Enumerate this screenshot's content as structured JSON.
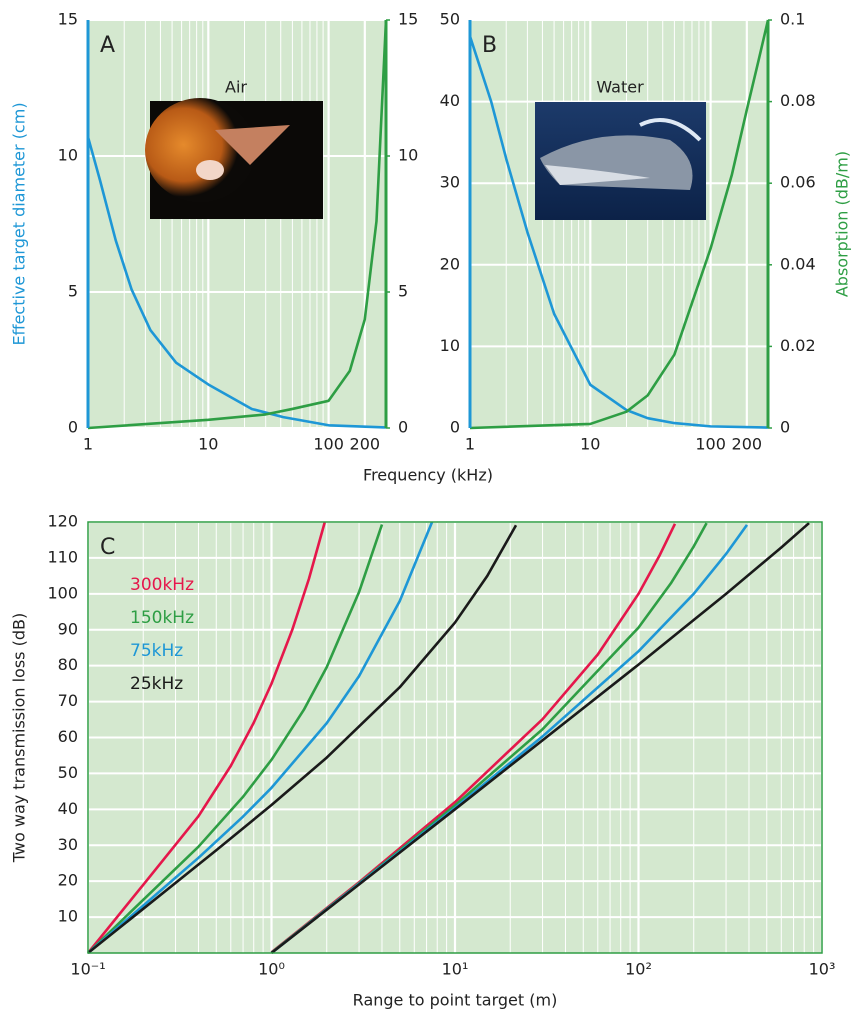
{
  "chart_data": [
    {
      "type": "line",
      "label": "A",
      "annotation": "Air",
      "xlabel": "Frequency (kHz)",
      "ylabel": "Effective target diameter (cm)",
      "log_x": true,
      "grid": true,
      "xlim": [
        1,
        300
      ],
      "xticks": [
        1,
        10,
        100,
        200
      ],
      "x_minor_ticks": [
        2,
        3,
        4,
        5,
        6,
        7,
        8,
        9,
        20,
        30,
        40,
        50,
        60,
        70,
        80,
        90
      ],
      "ylim": [
        0,
        15
      ],
      "yticks": [
        0,
        5,
        10,
        15
      ],
      "y2lim": [
        0,
        15
      ],
      "y2ticks": [
        0,
        5,
        10,
        15
      ],
      "series": [
        {
          "color": "#1e97d6",
          "x": [
            1,
            1.26,
            1.7,
            2.3,
            3.3,
            5.4,
            10,
            23,
            42,
            100,
            300
          ],
          "values": [
            10.7,
            9.1,
            6.9,
            5.1,
            3.6,
            2.4,
            1.6,
            0.7,
            0.4,
            0.1,
            0.02
          ]
        },
        {
          "color": "#2e9e44",
          "axis": "y2",
          "x": [
            1,
            10,
            30,
            50,
            100,
            150,
            200,
            250,
            300
          ],
          "values": [
            0,
            0.3,
            0.5,
            0.7,
            1.0,
            2.1,
            4.0,
            7.6,
            15
          ]
        }
      ]
    },
    {
      "type": "line",
      "label": "B",
      "annotation": "Water",
      "y2label": "Absorption (dB/m)",
      "log_x": true,
      "grid": true,
      "xlim": [
        1,
        300
      ],
      "xticks": [
        1,
        10,
        100,
        200
      ],
      "x_minor_ticks": [
        2,
        3,
        4,
        5,
        6,
        7,
        8,
        9,
        20,
        30,
        40,
        50,
        60,
        70,
        80,
        90
      ],
      "ylim": [
        0,
        50
      ],
      "yticks": [
        0,
        10,
        20,
        30,
        40,
        50
      ],
      "y2lim": [
        0,
        0.1
      ],
      "y2ticks": [
        0,
        0.02,
        0.04,
        0.06,
        0.08,
        0.1
      ],
      "series": [
        {
          "color": "#1e97d6",
          "x": [
            1,
            1.5,
            2,
            3,
            5,
            10,
            20,
            30,
            50,
            100,
            300
          ],
          "values": [
            48,
            40,
            33,
            24,
            14,
            5.3,
            2.2,
            1.2,
            0.6,
            0.2,
            0.05
          ]
        },
        {
          "color": "#2e9e44",
          "axis": "y2",
          "x": [
            1,
            10,
            20,
            30,
            50,
            100,
            150,
            200,
            250,
            300
          ],
          "values": [
            0,
            0.001,
            0.004,
            0.008,
            0.018,
            0.044,
            0.062,
            0.078,
            0.09,
            0.1
          ]
        }
      ]
    },
    {
      "type": "line",
      "label": "C",
      "xlabel": "Range to point target (m)",
      "ylabel": "Two way transmission loss (dB)",
      "log_x": true,
      "grid": true,
      "legend": "upper left",
      "xlim": [
        0.1,
        1000
      ],
      "xticks": [
        {
          "value": 0.1,
          "label": "10⁻¹"
        },
        {
          "value": 1,
          "label": "10⁰"
        },
        {
          "value": 10,
          "label": "10¹"
        },
        {
          "value": 100,
          "label": "10²"
        },
        {
          "value": 1000,
          "label": "10³"
        }
      ],
      "x_minor_ticks": [
        0.2,
        0.3,
        0.4,
        0.5,
        0.6,
        0.7,
        0.8,
        0.9,
        2,
        3,
        4,
        5,
        6,
        7,
        8,
        9,
        20,
        30,
        40,
        50,
        60,
        70,
        80,
        90,
        200,
        300,
        400,
        500,
        600,
        700,
        800,
        900
      ],
      "ylim": [
        0,
        120
      ],
      "yticks": [
        10,
        20,
        30,
        40,
        50,
        60,
        70,
        80,
        90,
        100,
        110,
        120
      ],
      "series": [
        {
          "name": "300kHz",
          "color": "#e5174b",
          "curves": [
            {
              "x": [
                0.1,
                0.2,
                0.4,
                0.6,
                0.8,
                1.0,
                1.3,
                1.6,
                1.95
              ],
              "values": [
                0,
                19.0,
                38.1,
                52.1,
                64.1,
                75,
                90.1,
                104.2,
                119.9
              ]
            },
            {
              "x": [
                1,
                3,
                10,
                30,
                60,
                100,
                130,
                158
              ],
              "values": [
                0.2,
                19.7,
                42,
                65.1,
                83.1,
                100,
                110.6,
                119.5
              ]
            }
          ]
        },
        {
          "name": "150kHz",
          "color": "#2e9e44",
          "curves": [
            {
              "x": [
                0.1,
                0.2,
                0.4,
                0.7,
                1,
                1.5,
                2,
                3,
                4
              ],
              "values": [
                0,
                14.8,
                29.6,
                43.5,
                53.8,
                67.7,
                79.6,
                100.5,
                119.3
              ]
            },
            {
              "x": [
                1,
                3,
                10,
                30,
                100,
                150,
                200,
                235
              ],
              "values": [
                0.1,
                19.4,
                41.1,
                62.3,
                90.6,
                102.9,
                113.2,
                119.7
              ]
            }
          ]
        },
        {
          "name": "75kHz",
          "color": "#1e97d6",
          "curves": [
            {
              "x": [
                0.1,
                0.2,
                0.4,
                0.7,
                1,
                2,
                3,
                5,
                7.5
              ],
              "values": [
                0,
                13.2,
                26.5,
                38.0,
                46,
                64.0,
                77.1,
                98.0,
                120
              ]
            },
            {
              "x": [
                1,
                10,
                30,
                100,
                200,
                300,
                390
              ],
              "values": [
                0,
                40.4,
                60.3,
                84,
                100,
                111.1,
                119.2
              ]
            }
          ]
        },
        {
          "name": "25kHz",
          "color": "#1a1a1a",
          "curves": [
            {
              "x": [
                0.1,
                0.2,
                0.5,
                1,
                2,
                5,
                10,
                15,
                21.5
              ],
              "values": [
                0,
                12.3,
                28.6,
                41.2,
                54.4,
                74.0,
                92,
                105.0,
                119.1
              ]
            },
            {
              "x": [
                1,
                10,
                100,
                300,
                600,
                850
              ],
              "values": [
                0,
                40.0,
                80.3,
                100.0,
                112.9,
                119.7
              ]
            }
          ]
        }
      ]
    }
  ]
}
